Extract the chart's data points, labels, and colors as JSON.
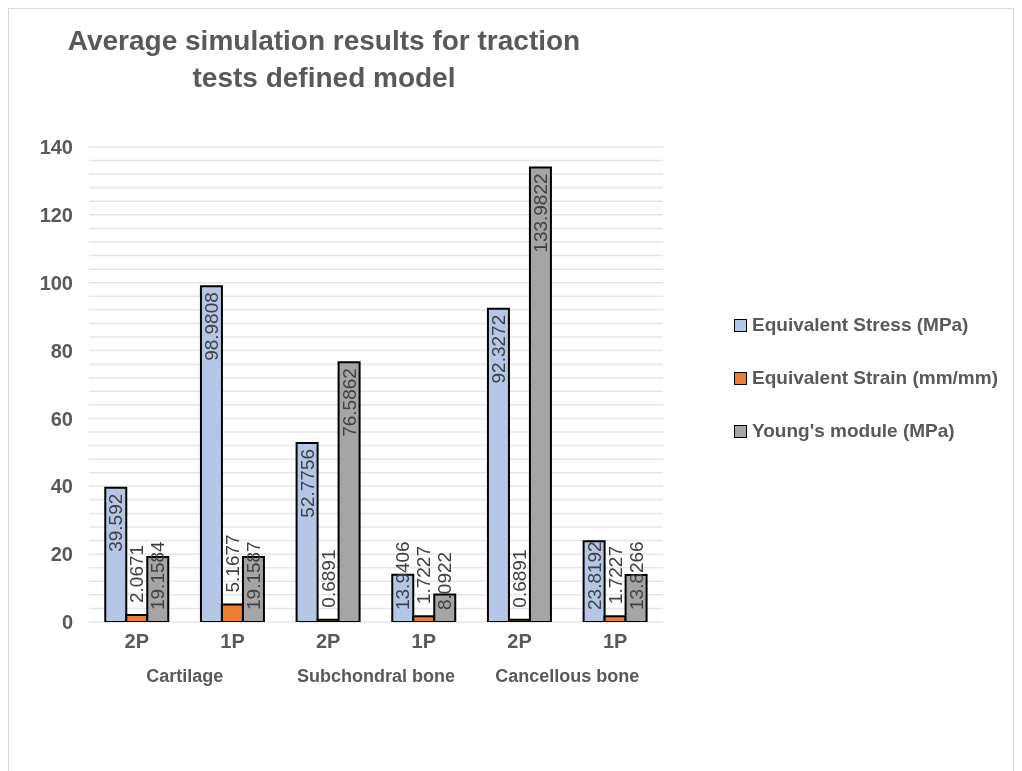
{
  "chart_data": {
    "type": "bar",
    "title": "Average simulation results for traction tests defined model",
    "categories": [
      "2P",
      "1P",
      "2P",
      "1P",
      "2P",
      "1P"
    ],
    "series": [
      {
        "name": "Equivalent Stress (MPa)",
        "color": "#b4c7e7",
        "values": [
          39.592,
          98.9808,
          52.7756,
          13.9406,
          92.3272,
          23.8192
        ]
      },
      {
        "name": "Equivalent Strain (mm/mm)",
        "color": "#ed7d31",
        "values": [
          2.0671,
          5.1677,
          0.6891,
          1.7227,
          0.6891,
          1.7227
        ]
      },
      {
        "name": "Young's module (MPa)",
        "color": "#a5a5a5",
        "values": [
          19.1584,
          19.1587,
          76.5862,
          8.0922,
          133.9822,
          13.8266
        ]
      }
    ],
    "ylim": [
      0,
      140
    ],
    "yticks": [
      0,
      {
        "value": 4,
        "label": null
      },
      {
        "value": 8,
        "label": null
      },
      {
        "value": 12,
        "label": null
      },
      {
        "value": 16,
        "label": null
      },
      20,
      {
        "value": 24,
        "label": null
      },
      {
        "value": 28,
        "label": null
      },
      {
        "value": 32,
        "label": null
      },
      {
        "value": 36,
        "label": null
      },
      40,
      {
        "value": 44,
        "label": null
      },
      {
        "value": 48,
        "label": null
      },
      {
        "value": 52,
        "label": null
      },
      {
        "value": 56,
        "label": null
      },
      60,
      {
        "value": 64,
        "label": null
      },
      {
        "value": 68,
        "label": null
      },
      {
        "value": 72,
        "label": null
      },
      {
        "value": 76,
        "label": null
      },
      80,
      {
        "value": 84,
        "label": null
      },
      {
        "value": 88,
        "label": null
      },
      {
        "value": 92,
        "label": null
      },
      {
        "value": 96,
        "label": null
      },
      100,
      {
        "value": 104,
        "label": null
      },
      {
        "value": 108,
        "label": null
      },
      {
        "value": 112,
        "label": null
      },
      {
        "value": 116,
        "label": null
      },
      120,
      {
        "value": 124,
        "label": null
      },
      {
        "value": 128,
        "label": null
      },
      {
        "value": 132,
        "label": null
      },
      {
        "value": 136,
        "label": null
      },
      140
    ],
    "grid": "y",
    "legend": "right",
    "data_labels": true,
    "annotations": [
      "Cartilage",
      "Subchondral bone",
      "Cancellous bone"
    ]
  }
}
